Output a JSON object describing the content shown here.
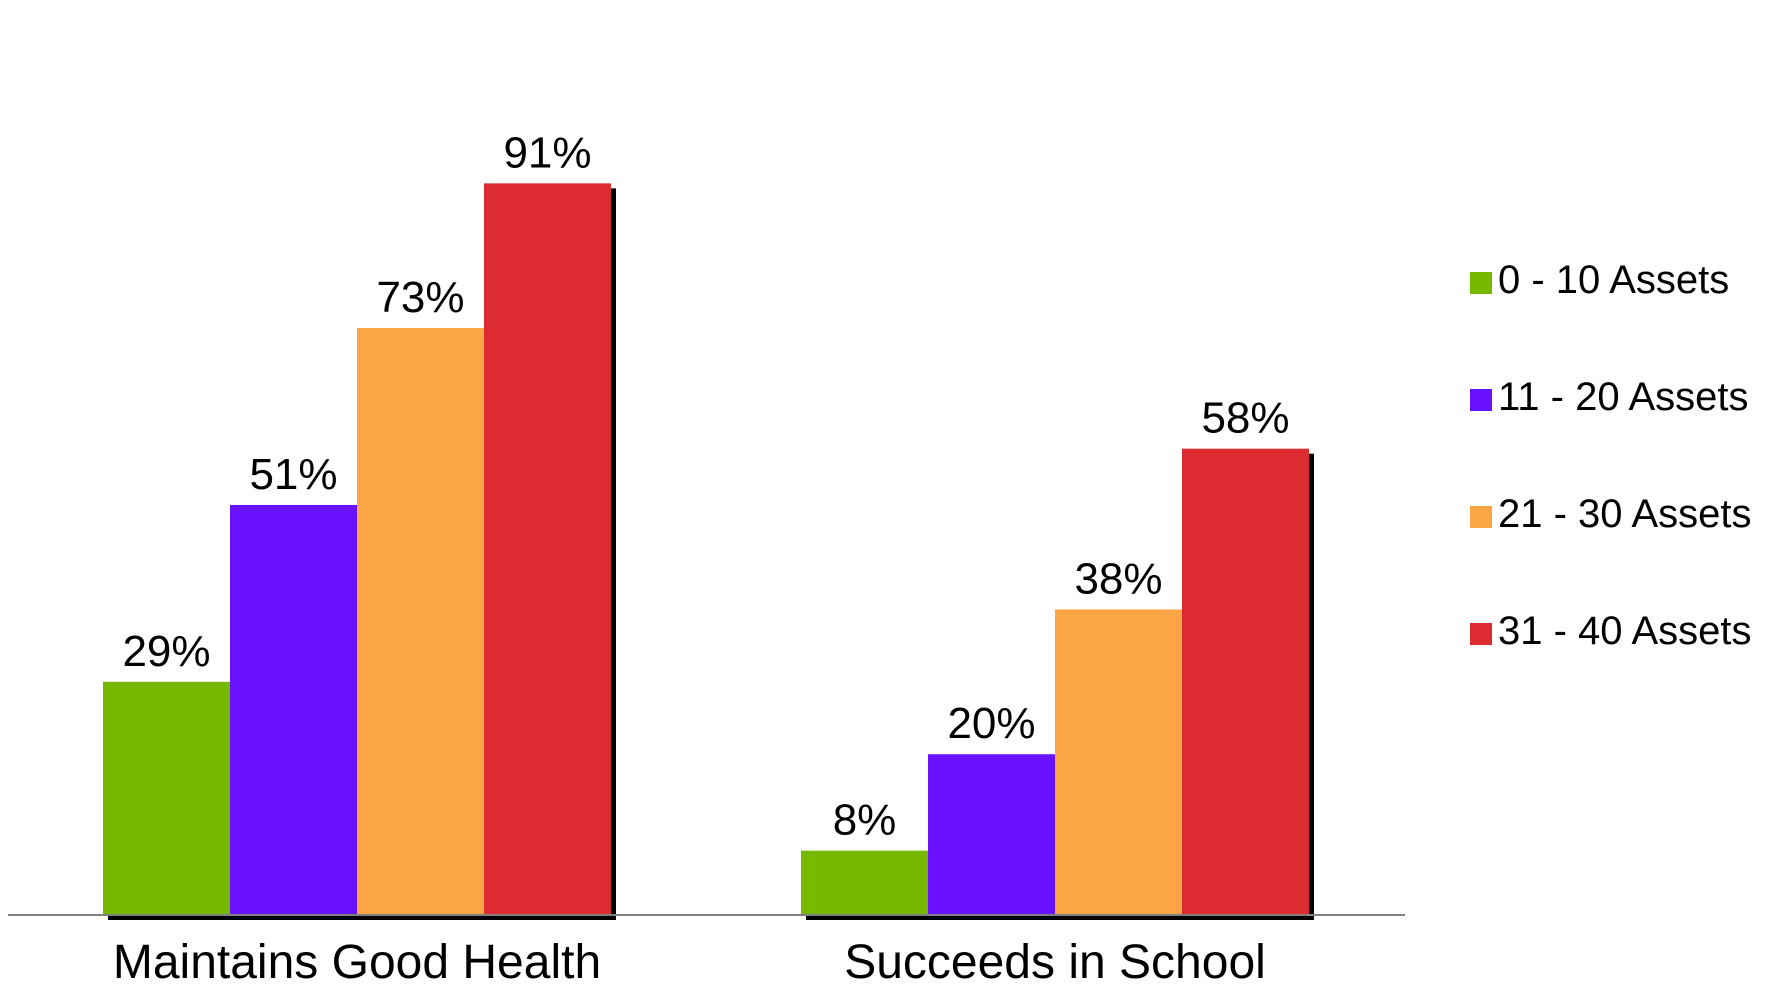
{
  "chart_data": {
    "type": "bar",
    "categories": [
      "Maintains Good Health",
      "Succeeds in School"
    ],
    "series": [
      {
        "name": "0 - 10 Assets",
        "color": "#77b900",
        "values": [
          29,
          8
        ]
      },
      {
        "name": "11 - 20 Assets",
        "color": "#6a12ff",
        "values": [
          51,
          20
        ]
      },
      {
        "name": "21 - 30 Assets",
        "color": "#fba544",
        "values": [
          73,
          38
        ]
      },
      {
        "name": "31 - 40 Assets",
        "color": "#dc2c31",
        "values": [
          91,
          58
        ]
      }
    ],
    "value_suffix": "%",
    "ylim": [
      0,
      100
    ],
    "grid": false,
    "legend_position": "right",
    "title": "",
    "xlabel": "",
    "ylabel": ""
  }
}
